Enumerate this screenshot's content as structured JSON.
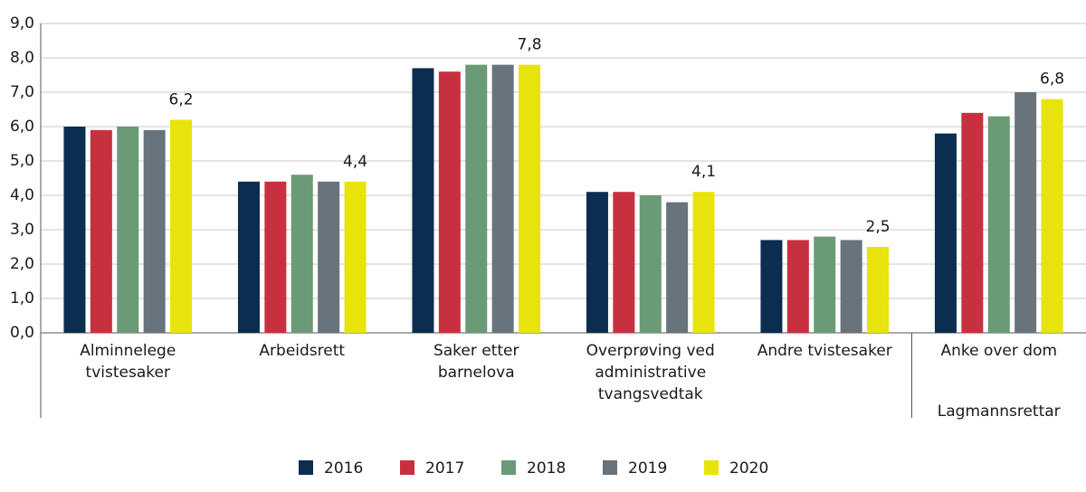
{
  "chart_data": {
    "type": "bar",
    "categories": [
      "Alminnelege\ntvistesaker",
      "Arbeidsrett",
      "Saker etter\nbarnelova",
      "Overprøving ved\nadministrative\ntvangsvedtak",
      "Andre tvistesaker",
      "Anke over dom"
    ],
    "group_label": "Lagmannsrettar",
    "series": [
      {
        "name": "2016",
        "color": "#0b2d4f",
        "values": [
          6.0,
          4.4,
          7.7,
          4.1,
          2.7,
          5.8
        ]
      },
      {
        "name": "2017",
        "color": "#c7313f",
        "values": [
          5.9,
          4.4,
          7.6,
          4.1,
          2.7,
          6.4
        ]
      },
      {
        "name": "2018",
        "color": "#6a9a76",
        "values": [
          6.0,
          4.6,
          7.8,
          4.0,
          2.8,
          6.3
        ]
      },
      {
        "name": "2019",
        "color": "#69737b",
        "values": [
          5.9,
          4.4,
          7.8,
          3.8,
          2.7,
          7.0
        ]
      },
      {
        "name": "2020",
        "color": "#e8e30c",
        "values": [
          6.2,
          4.4,
          7.8,
          4.1,
          2.5,
          6.8
        ],
        "value_labels": [
          "6,2",
          "4,4",
          "7,8",
          "4,1",
          "2,5",
          "6,8"
        ]
      }
    ],
    "ylim": [
      0,
      9
    ],
    "yticks": [
      {
        "value": 0,
        "label": "0,0"
      },
      {
        "value": 1,
        "label": "1,0"
      },
      {
        "value": 2,
        "label": "2,0"
      },
      {
        "value": 3,
        "label": "3,0"
      },
      {
        "value": 4,
        "label": "4,0"
      },
      {
        "value": 5,
        "label": "5,0"
      },
      {
        "value": 6,
        "label": "6,0"
      },
      {
        "value": 7,
        "label": "7,0"
      },
      {
        "value": 8,
        "label": "8,0"
      },
      {
        "value": 9,
        "label": "9,0"
      }
    ],
    "grid": true
  }
}
